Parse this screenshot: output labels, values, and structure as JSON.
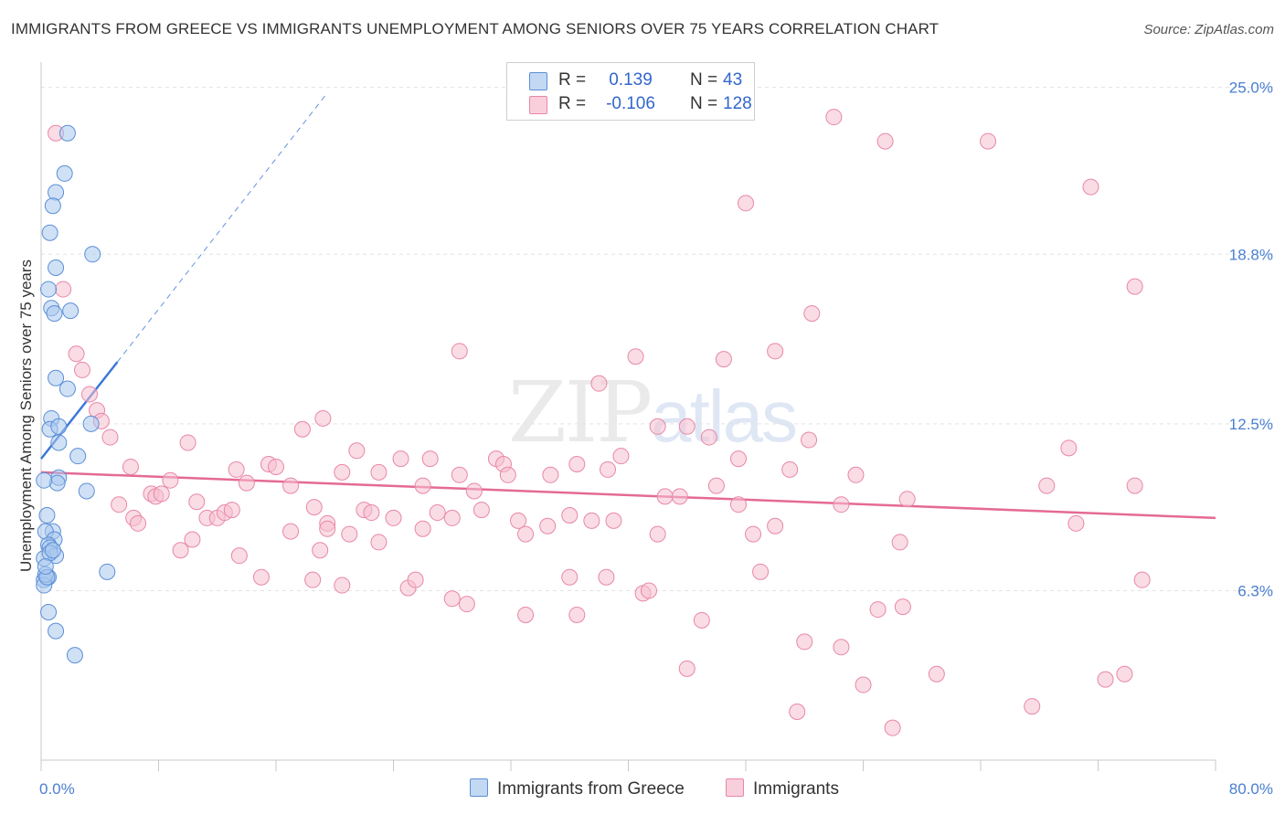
{
  "title": "IMMIGRANTS FROM GREECE VS IMMIGRANTS UNEMPLOYMENT AMONG SENIORS OVER 75 YEARS CORRELATION CHART",
  "source": "Source: ZipAtlas.com",
  "watermark": {
    "a": "ZIP",
    "b": "atlas"
  },
  "legend": {
    "series1": {
      "r_label": "R =",
      "r_value": "0.139",
      "n_label": "N =",
      "n_value": "43"
    },
    "series2": {
      "r_label": "R =",
      "r_value": "-0.106",
      "n_label": "N =",
      "n_value": "128"
    }
  },
  "colors": {
    "greece_fill": "#aac8ee",
    "greece_stroke": "#5b8fd6",
    "greece_line": "#3b78d8",
    "immig_fill": "#f6bfd0",
    "immig_stroke": "#e887a8",
    "immig_line": "#e46a95",
    "grid": "#e3e3e3",
    "axis_text": "#4a7fd0"
  },
  "chart_data": {
    "type": "scatter",
    "title": "IMMIGRANTS FROM GREECE VS IMMIGRANTS UNEMPLOYMENT AMONG SENIORS OVER 75 YEARS CORRELATION CHART",
    "xlabel": "",
    "ylabel": "Unemployment Among Seniors over 75 years",
    "xlim": [
      0,
      80
    ],
    "ylim": [
      0,
      25.6
    ],
    "x_tick_labels": [
      "0.0%",
      "80.0%"
    ],
    "y_ticks": [
      6.3,
      12.5,
      18.8,
      25.0
    ],
    "y_tick_labels": [
      "6.3%",
      "12.5%",
      "18.8%",
      "25.0%"
    ],
    "legend_position": "top-center",
    "series": [
      {
        "name": "Immigrants from Greece",
        "trend": {
          "x0": 0.0,
          "y0": 11.2,
          "x1": 5.2,
          "y1": 14.8,
          "dashed_to_x": 19.5,
          "dashed_to_y": 24.8
        },
        "points": [
          [
            1.8,
            23.3
          ],
          [
            1.6,
            21.8
          ],
          [
            1.0,
            21.1
          ],
          [
            0.8,
            20.6
          ],
          [
            0.6,
            19.6
          ],
          [
            3.5,
            18.8
          ],
          [
            1.0,
            18.3
          ],
          [
            0.5,
            17.5
          ],
          [
            2.0,
            16.7
          ],
          [
            0.7,
            16.8
          ],
          [
            0.9,
            16.6
          ],
          [
            1.0,
            14.2
          ],
          [
            1.8,
            13.8
          ],
          [
            0.7,
            12.7
          ],
          [
            0.6,
            12.3
          ],
          [
            1.2,
            12.4
          ],
          [
            3.4,
            12.5
          ],
          [
            1.2,
            11.8
          ],
          [
            2.5,
            11.3
          ],
          [
            1.2,
            10.5
          ],
          [
            1.1,
            10.3
          ],
          [
            0.2,
            10.4
          ],
          [
            3.1,
            10.0
          ],
          [
            0.4,
            9.1
          ],
          [
            0.8,
            8.5
          ],
          [
            0.3,
            8.5
          ],
          [
            0.9,
            8.2
          ],
          [
            0.5,
            8.0
          ],
          [
            0.6,
            7.9
          ],
          [
            1.0,
            7.6
          ],
          [
            0.2,
            7.5
          ],
          [
            4.5,
            7.0
          ],
          [
            0.5,
            6.8
          ],
          [
            0.2,
            6.7
          ],
          [
            0.2,
            6.5
          ],
          [
            0.5,
            5.5
          ],
          [
            1.0,
            4.8
          ],
          [
            2.3,
            3.9
          ],
          [
            0.6,
            7.7
          ],
          [
            0.3,
            6.9
          ],
          [
            0.4,
            6.8
          ],
          [
            0.8,
            7.8
          ],
          [
            0.3,
            7.2
          ]
        ]
      },
      {
        "name": "Immigrants",
        "trend": {
          "x0": 0.0,
          "y0": 10.7,
          "x1": 80.0,
          "y1": 9.0
        },
        "points": [
          [
            1.0,
            23.3
          ],
          [
            1.5,
            17.5
          ],
          [
            54.0,
            23.9
          ],
          [
            57.5,
            23.0
          ],
          [
            64.5,
            23.0
          ],
          [
            48.0,
            20.7
          ],
          [
            71.5,
            21.3
          ],
          [
            74.5,
            17.6
          ],
          [
            52.5,
            16.6
          ],
          [
            2.4,
            15.1
          ],
          [
            28.5,
            15.2
          ],
          [
            40.5,
            15.0
          ],
          [
            46.5,
            14.9
          ],
          [
            50.0,
            15.2
          ],
          [
            2.8,
            14.5
          ],
          [
            3.3,
            13.6
          ],
          [
            38.0,
            14.0
          ],
          [
            3.8,
            13.0
          ],
          [
            4.1,
            12.6
          ],
          [
            4.7,
            12.0
          ],
          [
            17.8,
            12.3
          ],
          [
            19.2,
            12.7
          ],
          [
            42.0,
            12.4
          ],
          [
            44.0,
            12.4
          ],
          [
            45.5,
            12.0
          ],
          [
            52.3,
            11.9
          ],
          [
            10.0,
            11.8
          ],
          [
            21.5,
            11.5
          ],
          [
            24.5,
            11.2
          ],
          [
            26.5,
            11.2
          ],
          [
            31.0,
            11.2
          ],
          [
            31.5,
            11.0
          ],
          [
            36.5,
            11.0
          ],
          [
            39.5,
            11.3
          ],
          [
            47.5,
            11.2
          ],
          [
            70.0,
            11.6
          ],
          [
            6.1,
            10.9
          ],
          [
            13.3,
            10.8
          ],
          [
            15.5,
            11.0
          ],
          [
            16.0,
            10.9
          ],
          [
            20.5,
            10.7
          ],
          [
            23.0,
            10.7
          ],
          [
            28.5,
            10.6
          ],
          [
            31.8,
            10.6
          ],
          [
            34.7,
            10.6
          ],
          [
            38.6,
            10.8
          ],
          [
            51.0,
            10.8
          ],
          [
            55.5,
            10.6
          ],
          [
            8.8,
            10.4
          ],
          [
            14.0,
            10.3
          ],
          [
            17.0,
            10.2
          ],
          [
            26.0,
            10.2
          ],
          [
            29.5,
            10.0
          ],
          [
            7.5,
            9.9
          ],
          [
            7.8,
            9.8
          ],
          [
            8.2,
            9.9
          ],
          [
            10.6,
            9.6
          ],
          [
            18.6,
            9.4
          ],
          [
            22.0,
            9.3
          ],
          [
            22.5,
            9.2
          ],
          [
            27.0,
            9.2
          ],
          [
            30.0,
            9.3
          ],
          [
            42.5,
            9.8
          ],
          [
            43.5,
            9.8
          ],
          [
            46.0,
            10.2
          ],
          [
            47.5,
            9.5
          ],
          [
            54.5,
            9.5
          ],
          [
            59.0,
            9.7
          ],
          [
            68.5,
            10.2
          ],
          [
            74.5,
            10.2
          ],
          [
            5.3,
            9.5
          ],
          [
            6.3,
            9.0
          ],
          [
            6.6,
            8.8
          ],
          [
            11.3,
            9.0
          ],
          [
            12.0,
            9.0
          ],
          [
            12.5,
            9.2
          ],
          [
            13.0,
            9.3
          ],
          [
            19.5,
            8.8
          ],
          [
            24.0,
            9.0
          ],
          [
            28.0,
            9.0
          ],
          [
            32.5,
            8.9
          ],
          [
            36.0,
            9.1
          ],
          [
            37.5,
            8.9
          ],
          [
            39.0,
            8.9
          ],
          [
            13.5,
            7.6
          ],
          [
            17.0,
            8.5
          ],
          [
            19.5,
            8.6
          ],
          [
            21.0,
            8.4
          ],
          [
            23.0,
            8.1
          ],
          [
            26.0,
            8.6
          ],
          [
            33.0,
            8.4
          ],
          [
            34.5,
            8.7
          ],
          [
            42.0,
            8.4
          ],
          [
            48.5,
            8.4
          ],
          [
            50.0,
            8.7
          ],
          [
            58.5,
            8.1
          ],
          [
            70.5,
            8.8
          ],
          [
            9.5,
            7.8
          ],
          [
            10.3,
            8.2
          ],
          [
            19.0,
            7.8
          ],
          [
            15.0,
            6.8
          ],
          [
            18.5,
            6.7
          ],
          [
            20.5,
            6.5
          ],
          [
            25.0,
            6.4
          ],
          [
            25.5,
            6.7
          ],
          [
            36.0,
            6.8
          ],
          [
            38.5,
            6.8
          ],
          [
            49.0,
            7.0
          ],
          [
            28.0,
            6.0
          ],
          [
            29.0,
            5.8
          ],
          [
            33.0,
            5.4
          ],
          [
            36.5,
            5.4
          ],
          [
            41.0,
            6.2
          ],
          [
            41.4,
            6.3
          ],
          [
            45.0,
            5.2
          ],
          [
            57.0,
            5.6
          ],
          [
            58.7,
            5.7
          ],
          [
            75.0,
            6.7
          ],
          [
            52.0,
            4.4
          ],
          [
            54.5,
            4.2
          ],
          [
            44.0,
            3.4
          ],
          [
            56.0,
            2.8
          ],
          [
            61.0,
            3.2
          ],
          [
            72.5,
            3.0
          ],
          [
            73.8,
            3.2
          ],
          [
            51.5,
            1.8
          ],
          [
            58.0,
            1.2
          ],
          [
            67.5,
            2.0
          ]
        ]
      }
    ]
  }
}
